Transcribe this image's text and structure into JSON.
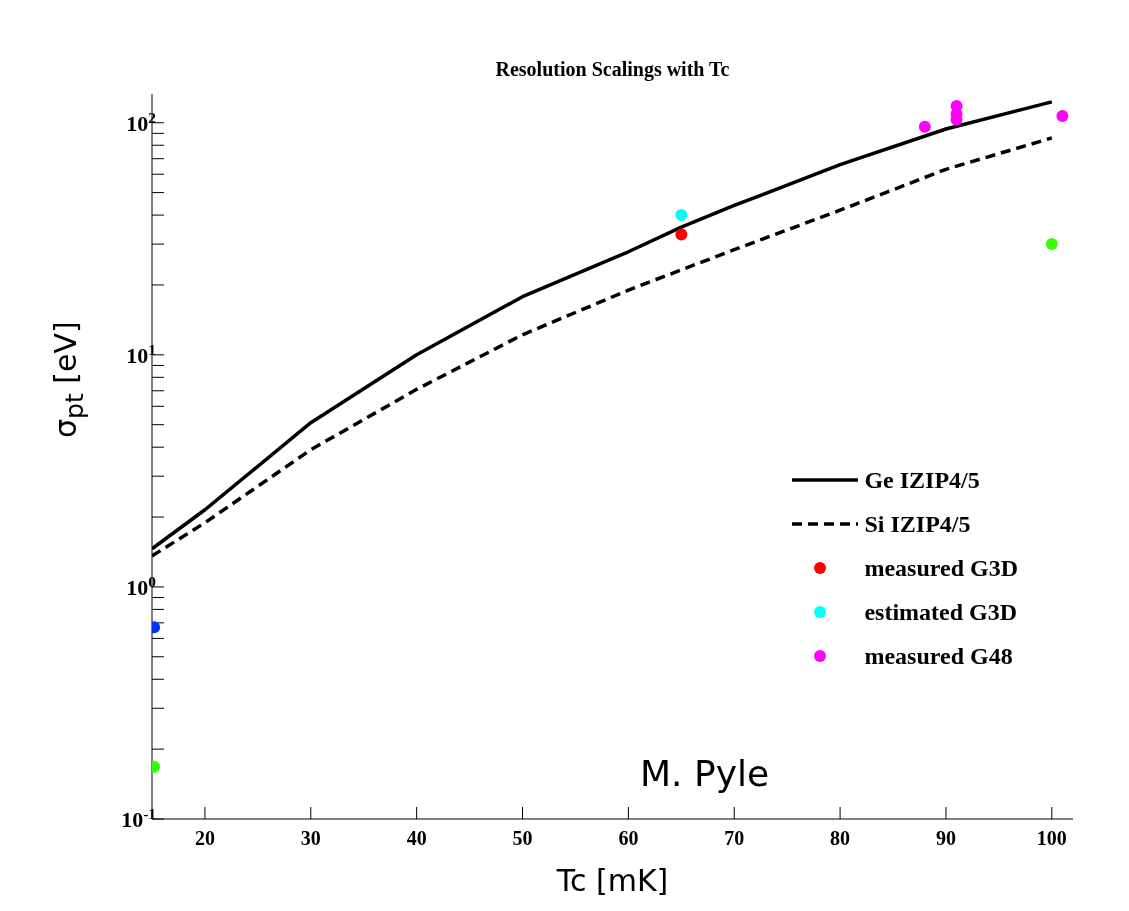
{
  "chart_data": {
    "type": "line",
    "title": "Resolution Scalings with Tc",
    "xlabel": "Tc [mK]",
    "ylabel": "σ$_{pt}$ [eV]",
    "annotations": [
      "M. Pyle"
    ],
    "log": "y",
    "legend": "bottom right",
    "xlim": [
      15,
      102
    ],
    "xticks": [
      20,
      30,
      40,
      50,
      60,
      70,
      80,
      90,
      100
    ],
    "ylim": [
      0.1,
      133
    ],
    "yticks": [
      {
        "value": 0.1,
        "label": "10$^{-1}$"
      },
      {
        "value": 0.2,
        "label": null
      },
      {
        "value": 0.3,
        "label": null
      },
      {
        "value": 0.4,
        "label": null
      },
      {
        "value": 0.5,
        "label": null
      },
      {
        "value": 0.6,
        "label": null
      },
      {
        "value": 0.7,
        "label": null
      },
      {
        "value": 0.8,
        "label": null
      },
      {
        "value": 0.9,
        "label": null
      },
      {
        "value": 1,
        "label": "10$^{0}$"
      },
      {
        "value": 2,
        "label": null
      },
      {
        "value": 3,
        "label": null
      },
      {
        "value": 4,
        "label": null
      },
      {
        "value": 5,
        "label": null
      },
      {
        "value": 6,
        "label": null
      },
      {
        "value": 7,
        "label": null
      },
      {
        "value": 8,
        "label": null
      },
      {
        "value": 9,
        "label": null
      },
      {
        "value": 10,
        "label": "10$^{1}$"
      },
      {
        "value": 20,
        "label": null
      },
      {
        "value": 30,
        "label": null
      },
      {
        "value": 40,
        "label": null
      },
      {
        "value": 50,
        "label": null
      },
      {
        "value": 60,
        "label": null
      },
      {
        "value": 70,
        "label": null
      },
      {
        "value": 80,
        "label": null
      },
      {
        "value": 90,
        "label": null
      },
      {
        "value": 100,
        "label": "10$^{2}$"
      }
    ],
    "series": [
      {
        "name": "Ge IZIP4/5",
        "line_style": "solid",
        "marker": "none",
        "color": "#000000",
        "x": [
          15,
          20,
          30,
          40,
          50,
          60,
          65,
          70,
          80,
          90,
          100
        ],
        "values": [
          1.46,
          2.15,
          5.1,
          10,
          17.8,
          27.8,
          35.5,
          44,
          66,
          94,
          123
        ]
      },
      {
        "name": "Si IZIP4/5",
        "line_style": "dashed",
        "marker": "none",
        "color": "#000000",
        "x": [
          15,
          20,
          30,
          40,
          50,
          60,
          70,
          80,
          90,
          100
        ],
        "values": [
          1.36,
          1.89,
          3.9,
          7.1,
          12.2,
          19,
          28.4,
          42,
          63,
          86
        ]
      },
      {
        "name": "measured G3D",
        "type": "scatter",
        "marker": "circle",
        "color": "#ff0000",
        "x": [
          65
        ],
        "values": [
          33
        ]
      },
      {
        "name": "estimated G3D",
        "type": "scatter",
        "marker": "circle",
        "color": "#00ffff",
        "x": [
          65
        ],
        "values": [
          40
        ]
      },
      {
        "name": "measured G48",
        "type": "scatter",
        "marker": "circle",
        "color": "#ff00ff",
        "x": [
          88,
          91,
          91,
          91,
          101
        ],
        "values": [
          96,
          118,
          109,
          103,
          107
        ]
      },
      {
        "type": "scatter",
        "marker": "circle",
        "color": "#0033ff",
        "x": [
          15.2
        ],
        "values": [
          0.67
        ]
      },
      {
        "type": "scatter",
        "marker": "circle",
        "color": "#33ff00",
        "x": [
          15.2,
          100
        ],
        "values": [
          0.168,
          30
        ]
      }
    ]
  }
}
